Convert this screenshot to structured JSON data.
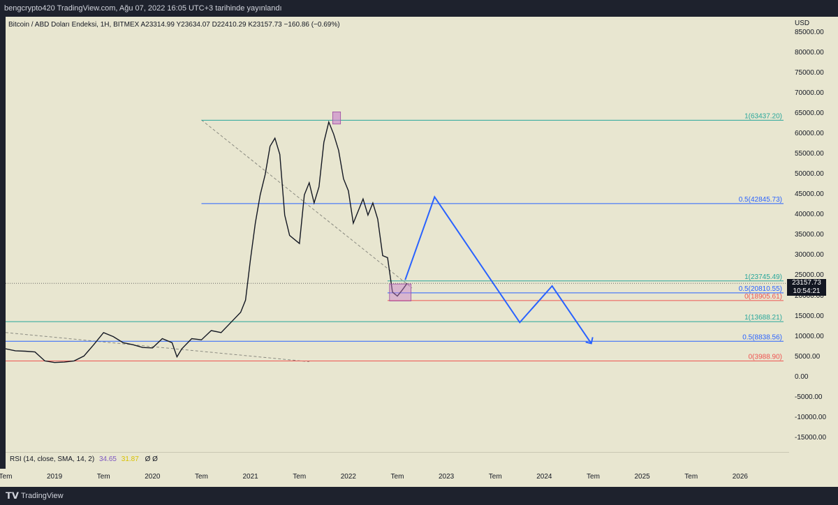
{
  "header": {
    "publisher_line": "bengcrypto420 TradingView.com, Ağu 07, 2022 16:05 UTC+3 tarihinde yayınlandı"
  },
  "symbol_info": "Bitcoin / ABD Doları Endeksi, 1H, BITMEX  A23314.99  Y23634.07  D22410.29  K23157.73  −160.86 (−0.69%)",
  "colors": {
    "background": "#e8e6d0",
    "frame": "#1e222d",
    "fib_green": "#26a69a",
    "fib_blue": "#2962ff",
    "fib_red": "#ef5350",
    "arrow": "#2962ff",
    "zone": "#c77dcb"
  },
  "icons": {
    "tradingview_logo": "tradingview-logo-icon"
  },
  "footer": {
    "logo_glyph": "𝗧𝗩",
    "brand": "TradingView"
  },
  "rsi": {
    "label": "RSI (14, close, SMA, 14, 2)",
    "value1": "34.65",
    "value2": "31.87",
    "value3": "Ø  Ø"
  },
  "price_badge": {
    "price": "23157.73",
    "countdown": "10:54:21"
  },
  "chart_data": {
    "type": "line",
    "title": "Bitcoin / ABD Doları Endeksi, 1H, BITMEX",
    "y_unit": "USD",
    "ylim": [
      -18500,
      89000
    ],
    "y_ticks": [
      "85000.00",
      "80000.00",
      "75000.00",
      "70000.00",
      "65000.00",
      "60000.00",
      "55000.00",
      "50000.00",
      "45000.00",
      "40000.00",
      "35000.00",
      "30000.00",
      "25000.00",
      "20000.00",
      "15000.00",
      "10000.00",
      "5000.00",
      "0.00",
      "-5000.00",
      "-10000.00",
      "-15000.00"
    ],
    "y_tick_values": [
      85000,
      80000,
      75000,
      70000,
      65000,
      60000,
      55000,
      50000,
      45000,
      40000,
      35000,
      30000,
      25000,
      20000,
      15000,
      10000,
      5000,
      0,
      -5000,
      -10000,
      -15000
    ],
    "x_ticks": [
      "Tem",
      "2019",
      "Tem",
      "2020",
      "Tem",
      "2021",
      "Tem",
      "2022",
      "Tem",
      "2023",
      "Tem",
      "2024",
      "Tem",
      "2025",
      "Tem",
      "2026"
    ],
    "x_tick_dates": [
      2018.5,
      2019.0,
      2019.5,
      2020.0,
      2020.5,
      2021.0,
      2021.5,
      2022.0,
      2022.5,
      2023.0,
      2023.5,
      2024.0,
      2024.5,
      2025.0,
      2025.5,
      2026.0
    ],
    "xlim": [
      2018.5,
      2026.5
    ],
    "price_series": {
      "name": "BTCUSD",
      "x": [
        2018.5,
        2018.6,
        2018.7,
        2018.8,
        2018.9,
        2019.0,
        2019.1,
        2019.2,
        2019.3,
        2019.4,
        2019.5,
        2019.6,
        2019.7,
        2019.8,
        2019.9,
        2020.0,
        2020.1,
        2020.2,
        2020.25,
        2020.3,
        2020.4,
        2020.5,
        2020.6,
        2020.7,
        2020.8,
        2020.9,
        2020.95,
        2021.0,
        2021.05,
        2021.1,
        2021.15,
        2021.2,
        2021.25,
        2021.3,
        2021.35,
        2021.4,
        2021.45,
        2021.5,
        2021.55,
        2021.6,
        2021.65,
        2021.7,
        2021.75,
        2021.8,
        2021.85,
        2021.9,
        2021.95,
        2022.0,
        2022.05,
        2022.1,
        2022.15,
        2022.2,
        2022.25,
        2022.3,
        2022.35,
        2022.4,
        2022.45,
        2022.5,
        2022.55,
        2022.6
      ],
      "y": [
        7000,
        6500,
        6400,
        6200,
        4000,
        3600,
        3700,
        4000,
        5200,
        8000,
        11000,
        10000,
        8500,
        8000,
        7300,
        7200,
        9500,
        8500,
        5000,
        7000,
        9500,
        9200,
        11500,
        11000,
        13500,
        16000,
        19000,
        29000,
        38000,
        45000,
        50000,
        57000,
        59000,
        55000,
        40000,
        35000,
        34000,
        33000,
        45000,
        48000,
        43000,
        47000,
        58000,
        63000,
        60000,
        56000,
        49000,
        46000,
        38000,
        41000,
        44000,
        40000,
        43000,
        39000,
        30000,
        29500,
        21000,
        20000,
        21500,
        23157
      ]
    },
    "fib_lines": [
      {
        "name": "1(63437.20)",
        "value": 63437.2,
        "color": "#26a69a"
      },
      {
        "name": "0.5(42845.73)",
        "value": 42845.73,
        "color": "#2962ff"
      },
      {
        "name": "1(23745.49)",
        "value": 23745.49,
        "color": "#26a69a"
      },
      {
        "name": "0.5(20810.55)",
        "value": 20810.55,
        "color": "#2962ff"
      },
      {
        "name": "0(18905.61)",
        "value": 18905.61,
        "color": "#ef5350"
      },
      {
        "name": "1(13688.21)",
        "value": 13688.21,
        "color": "#26a69a"
      },
      {
        "name": "0.5(8838.56)",
        "value": 8838.56,
        "color": "#2962ff"
      },
      {
        "name": "0(3988.90)",
        "value": 3988.9,
        "color": "#ef5350"
      }
    ],
    "arrow_path": {
      "x": [
        2022.58,
        2022.88,
        2023.75,
        2024.08,
        2024.48
      ],
      "y": [
        24000,
        44500,
        13500,
        22500,
        8300
      ]
    }
  }
}
